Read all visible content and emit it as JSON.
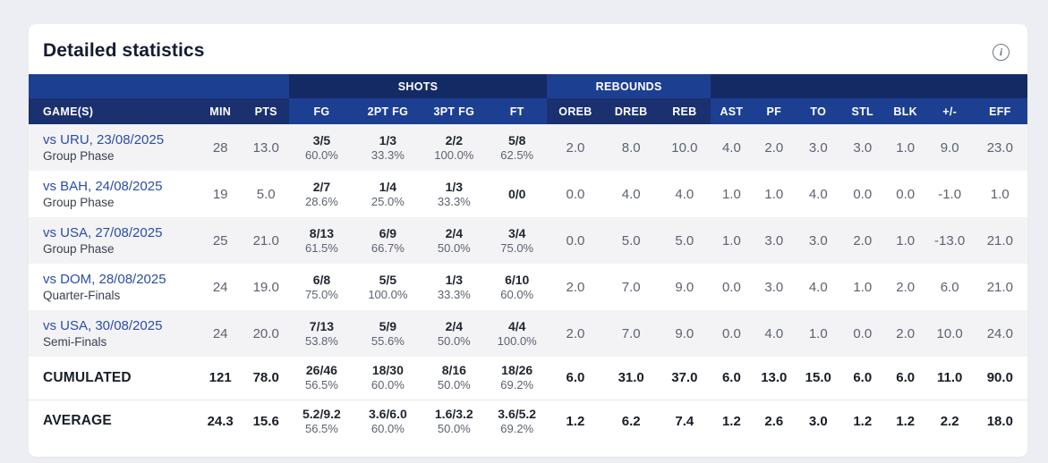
{
  "card": {
    "title": "Detailed statistics"
  },
  "icons": {
    "info": "i"
  },
  "colors": {
    "header_medium_blue": "#1D3F92",
    "header_dark_navy": "#142A64",
    "link_blue": "#2B4DA6",
    "row_alt_bg": "#F3F3F6",
    "page_bg": "#EDEEF3"
  },
  "table": {
    "groups": [
      {
        "label": ""
      },
      {
        "label": "SHOTS"
      },
      {
        "label": "REBOUNDS"
      },
      {
        "label": ""
      }
    ],
    "columns": [
      "GAME(S)",
      "MIN",
      "PTS",
      "FG",
      "2PT FG",
      "3PT FG",
      "FT",
      "OREB",
      "DREB",
      "REB",
      "AST",
      "PF",
      "TO",
      "STL",
      "BLK",
      "+/-",
      "EFF"
    ],
    "rows": [
      {
        "game": "vs URU, 23/08/2025",
        "phase": "Group Phase",
        "min": "28",
        "pts": "13.0",
        "fg": {
          "v": "3/5",
          "p": "60.0%"
        },
        "fg2": {
          "v": "1/3",
          "p": "33.3%"
        },
        "fg3": {
          "v": "2/2",
          "p": "100.0%"
        },
        "ft": {
          "v": "5/8",
          "p": "62.5%"
        },
        "oreb": "2.0",
        "dreb": "8.0",
        "reb": "10.0",
        "ast": "4.0",
        "pf": "2.0",
        "to": "3.0",
        "stl": "3.0",
        "blk": "1.0",
        "pm": "9.0",
        "eff": "23.0"
      },
      {
        "game": "vs BAH, 24/08/2025",
        "phase": "Group Phase",
        "min": "19",
        "pts": "5.0",
        "fg": {
          "v": "2/7",
          "p": "28.6%"
        },
        "fg2": {
          "v": "1/4",
          "p": "25.0%"
        },
        "fg3": {
          "v": "1/3",
          "p": "33.3%"
        },
        "ft": {
          "v": "0/0",
          "p": ""
        },
        "oreb": "0.0",
        "dreb": "4.0",
        "reb": "4.0",
        "ast": "1.0",
        "pf": "1.0",
        "to": "4.0",
        "stl": "0.0",
        "blk": "0.0",
        "pm": "-1.0",
        "eff": "1.0"
      },
      {
        "game": "vs USA, 27/08/2025",
        "phase": "Group Phase",
        "min": "25",
        "pts": "21.0",
        "fg": {
          "v": "8/13",
          "p": "61.5%"
        },
        "fg2": {
          "v": "6/9",
          "p": "66.7%"
        },
        "fg3": {
          "v": "2/4",
          "p": "50.0%"
        },
        "ft": {
          "v": "3/4",
          "p": "75.0%"
        },
        "oreb": "0.0",
        "dreb": "5.0",
        "reb": "5.0",
        "ast": "1.0",
        "pf": "3.0",
        "to": "3.0",
        "stl": "2.0",
        "blk": "1.0",
        "pm": "-13.0",
        "eff": "21.0"
      },
      {
        "game": "vs DOM, 28/08/2025",
        "phase": "Quarter-Finals",
        "min": "24",
        "pts": "19.0",
        "fg": {
          "v": "6/8",
          "p": "75.0%"
        },
        "fg2": {
          "v": "5/5",
          "p": "100.0%"
        },
        "fg3": {
          "v": "1/3",
          "p": "33.3%"
        },
        "ft": {
          "v": "6/10",
          "p": "60.0%"
        },
        "oreb": "2.0",
        "dreb": "7.0",
        "reb": "9.0",
        "ast": "0.0",
        "pf": "3.0",
        "to": "4.0",
        "stl": "1.0",
        "blk": "2.0",
        "pm": "6.0",
        "eff": "21.0"
      },
      {
        "game": "vs USA, 30/08/2025",
        "phase": "Semi-Finals",
        "min": "24",
        "pts": "20.0",
        "fg": {
          "v": "7/13",
          "p": "53.8%"
        },
        "fg2": {
          "v": "5/9",
          "p": "55.6%"
        },
        "fg3": {
          "v": "2/4",
          "p": "50.0%"
        },
        "ft": {
          "v": "4/4",
          "p": "100.0%"
        },
        "oreb": "2.0",
        "dreb": "7.0",
        "reb": "9.0",
        "ast": "0.0",
        "pf": "4.0",
        "to": "1.0",
        "stl": "0.0",
        "blk": "2.0",
        "pm": "10.0",
        "eff": "24.0"
      }
    ],
    "totals": [
      {
        "label": "CUMULATED",
        "min": "121",
        "pts": "78.0",
        "fg": {
          "v": "26/46",
          "p": "56.5%"
        },
        "fg2": {
          "v": "18/30",
          "p": "60.0%"
        },
        "fg3": {
          "v": "8/16",
          "p": "50.0%"
        },
        "ft": {
          "v": "18/26",
          "p": "69.2%"
        },
        "oreb": "6.0",
        "dreb": "31.0",
        "reb": "37.0",
        "ast": "6.0",
        "pf": "13.0",
        "to": "15.0",
        "stl": "6.0",
        "blk": "6.0",
        "pm": "11.0",
        "eff": "90.0"
      },
      {
        "label": "AVERAGE",
        "min": "24.3",
        "pts": "15.6",
        "fg": {
          "v": "5.2/9.2",
          "p": "56.5%"
        },
        "fg2": {
          "v": "3.6/6.0",
          "p": "60.0%"
        },
        "fg3": {
          "v": "1.6/3.2",
          "p": "50.0%"
        },
        "ft": {
          "v": "3.6/5.2",
          "p": "69.2%"
        },
        "oreb": "1.2",
        "dreb": "6.2",
        "reb": "7.4",
        "ast": "1.2",
        "pf": "2.6",
        "to": "3.0",
        "stl": "1.2",
        "blk": "1.2",
        "pm": "2.2",
        "eff": "18.0"
      }
    ]
  }
}
